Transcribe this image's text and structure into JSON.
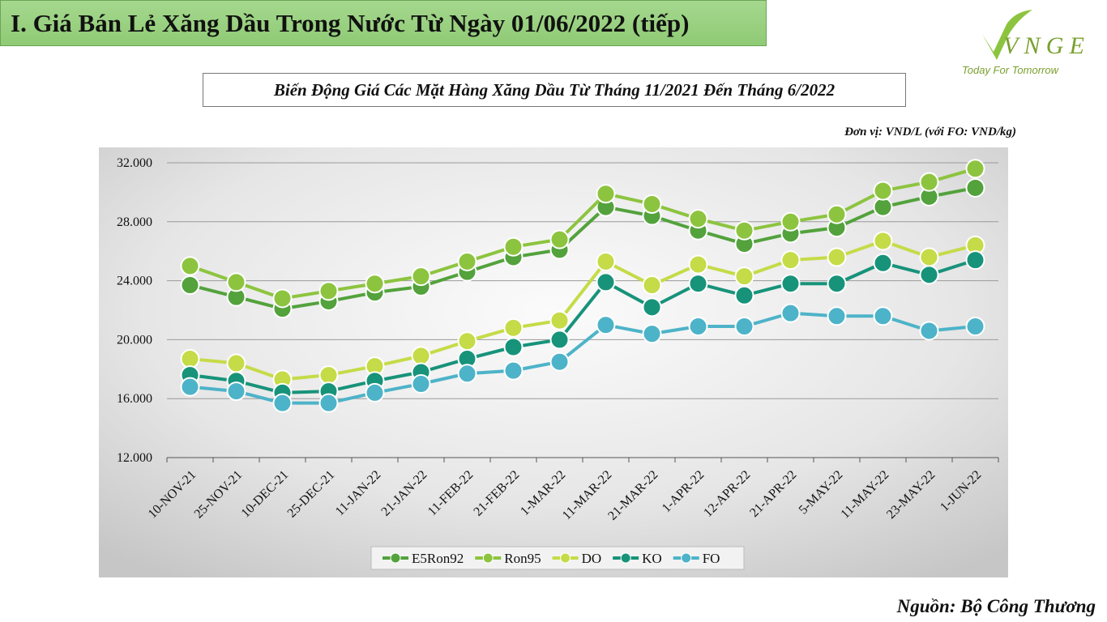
{
  "header": {
    "title": "I. Giá Bán Lẻ Xăng Dầu Trong Nước Từ Ngày 01/06/2022 (tiếp)"
  },
  "logo": {
    "brand": "VNGE",
    "tagline": "Today For Tomorrow"
  },
  "subtitle": "Biến Động Giá Các Mặt Hàng Xăng Dầu Từ Tháng 11/2021 Đến Tháng 6/2022",
  "unit_note": "Đơn vị: VND/L (với FO: VND/kg)",
  "source": "Nguồn: Bộ Công Thương",
  "chart_data": {
    "type": "line",
    "title": "",
    "xlabel": "",
    "ylabel": "",
    "ylim": [
      12000,
      32000
    ],
    "yticks": [
      12000,
      16000,
      20000,
      24000,
      28000,
      32000
    ],
    "ytick_labels": [
      "12.000",
      "16.000",
      "20.000",
      "24.000",
      "28.000",
      "32.000"
    ],
    "grid": true,
    "legend_position": "bottom",
    "categories": [
      "10-NOV-21",
      "25-NOV-21",
      "10-DEC-21",
      "25-DEC-21",
      "11-JAN-22",
      "21-JAN-22",
      "11-FEB-22",
      "21-FEB-22",
      "1-MAR-22",
      "11-MAR-22",
      "21-MAR-22",
      "1-APR-22",
      "12-APR-22",
      "21-APR-22",
      "5-MAY-22",
      "11-MAY-22",
      "23-MAY-22",
      "1-JUN-22"
    ],
    "series": [
      {
        "name": "E5Ron92",
        "color": "#53a23c",
        "values": [
          23700,
          22900,
          22100,
          22600,
          23200,
          23600,
          24600,
          25600,
          26100,
          29000,
          28400,
          27400,
          26500,
          27200,
          27600,
          29000,
          29700,
          30300
        ]
      },
      {
        "name": "Ron95",
        "color": "#8dc43f",
        "values": [
          25000,
          23900,
          22800,
          23300,
          23800,
          24300,
          25300,
          26300,
          26800,
          29900,
          29200,
          28200,
          27400,
          28000,
          28500,
          30100,
          30700,
          31600
        ]
      },
      {
        "name": "DO",
        "color": "#c5db48",
        "values": [
          18700,
          18400,
          17300,
          17600,
          18200,
          18900,
          19900,
          20800,
          21300,
          25300,
          23700,
          25100,
          24300,
          25400,
          25600,
          26700,
          25600,
          26400
        ]
      },
      {
        "name": "KO",
        "color": "#17937a",
        "values": [
          17600,
          17200,
          16400,
          16500,
          17200,
          17800,
          18700,
          19500,
          20000,
          23900,
          22200,
          23800,
          23000,
          23800,
          23800,
          25200,
          24400,
          25400
        ]
      },
      {
        "name": "FO",
        "color": "#4db3c8",
        "values": [
          16800,
          16500,
          15700,
          15700,
          16400,
          17000,
          17700,
          17900,
          18500,
          21000,
          20400,
          20900,
          20900,
          21800,
          21600,
          21600,
          20600,
          20900
        ]
      }
    ]
  }
}
